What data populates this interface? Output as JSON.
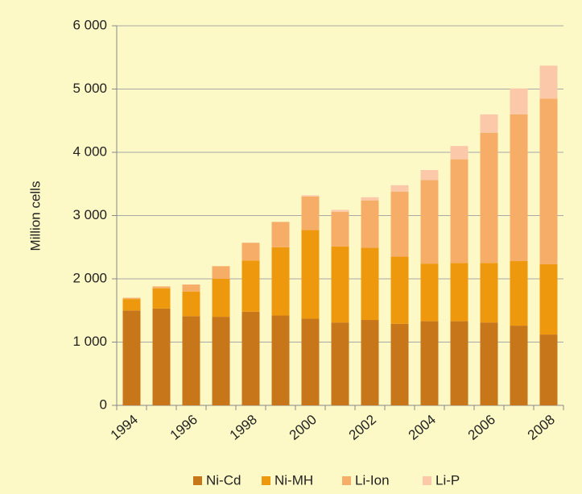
{
  "chart_data": {
    "type": "stacked_bar",
    "y_label": "Million cells",
    "categories": [
      "1994",
      null,
      "1996",
      null,
      "1998",
      null,
      "2000",
      null,
      "2002",
      null,
      "2004",
      null,
      "2006",
      null,
      "2008"
    ],
    "series": [
      {
        "name": "Ni-Cd",
        "color": "#c8761a",
        "values": [
          1500,
          1530,
          1410,
          1400,
          1480,
          1420,
          1370,
          1310,
          1350,
          1290,
          1330,
          1330,
          1310,
          1260,
          1120
        ]
      },
      {
        "name": "Ni-MH",
        "color": "#ee980e",
        "values": [
          180,
          320,
          390,
          600,
          810,
          1080,
          1400,
          1200,
          1140,
          1060,
          910,
          920,
          940,
          1020,
          1110
        ]
      },
      {
        "name": "Li-Ion",
        "color": "#f5ad68",
        "values": [
          20,
          30,
          110,
          200,
          280,
          400,
          530,
          550,
          750,
          1030,
          1320,
          1640,
          2060,
          2320,
          2620
        ]
      },
      {
        "name": "Li-P",
        "color": "#fbc9aa",
        "values": [
          0,
          0,
          0,
          0,
          0,
          0,
          20,
          30,
          50,
          100,
          160,
          210,
          290,
          410,
          520
        ]
      }
    ],
    "ylim": [
      0,
      6000
    ],
    "yticks": [
      0,
      {
        "value": 1000,
        "label": "1 000"
      },
      {
        "value": 2000,
        "label": "2 000"
      },
      {
        "value": 3000,
        "label": "3 000"
      },
      {
        "value": 4000,
        "label": "4 000"
      },
      {
        "value": 5000,
        "label": "5 000"
      },
      {
        "value": 6000,
        "label": "6 000"
      }
    ],
    "grid": true,
    "legend": "bottom"
  }
}
